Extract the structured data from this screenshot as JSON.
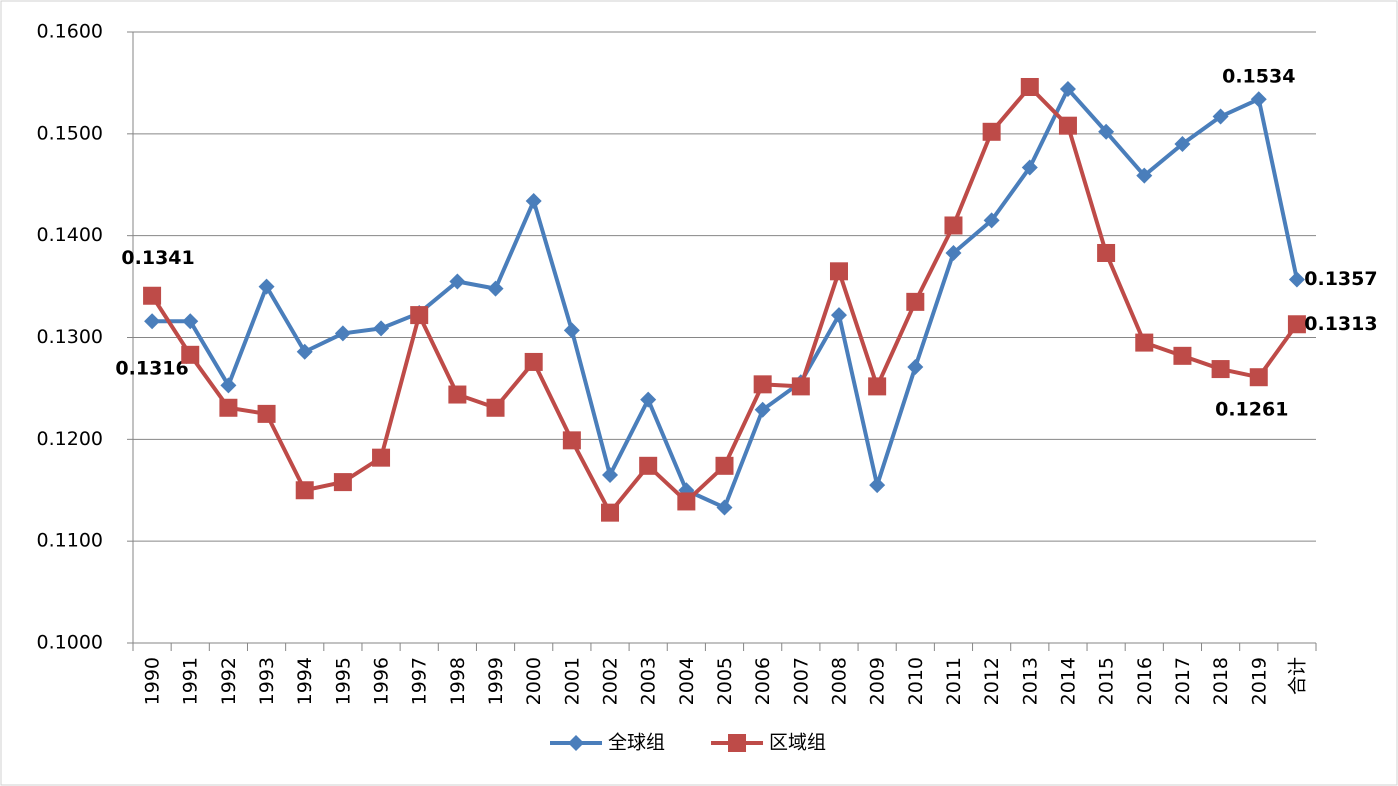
{
  "chart_data": {
    "type": "line",
    "categories": [
      "1990",
      "1991",
      "1992",
      "1993",
      "1994",
      "1995",
      "1996",
      "1997",
      "1998",
      "1999",
      "2000",
      "2001",
      "2002",
      "2003",
      "2004",
      "2005",
      "2006",
      "2007",
      "2008",
      "2009",
      "2010",
      "2011",
      "2012",
      "2013",
      "2014",
      "2015",
      "2016",
      "2017",
      "2018",
      "2019",
      "合计"
    ],
    "series": [
      {
        "name": "全球组",
        "color": "#4a7ebb",
        "marker": "diamond",
        "values": [
          0.1316,
          0.1316,
          0.1253,
          0.135,
          0.1286,
          0.1304,
          0.1309,
          0.1324,
          0.1355,
          0.1348,
          0.1434,
          0.1307,
          0.1165,
          0.1239,
          0.115,
          0.1133,
          0.1229,
          0.1256,
          0.1322,
          0.1155,
          0.1271,
          0.1383,
          0.1415,
          0.1467,
          0.1544,
          0.1502,
          0.1459,
          0.149,
          0.1517,
          0.1534,
          0.1357
        ],
        "value_labels": [
          "0.1316",
          null,
          null,
          null,
          null,
          null,
          null,
          null,
          null,
          null,
          null,
          null,
          null,
          null,
          null,
          null,
          null,
          null,
          null,
          null,
          null,
          null,
          null,
          null,
          null,
          null,
          null,
          null,
          null,
          "0.1534",
          "0.1357"
        ]
      },
      {
        "name": "区域组",
        "color": "#be4b48",
        "marker": "square",
        "values": [
          0.1341,
          0.1283,
          0.1231,
          0.1225,
          0.115,
          0.1158,
          0.1182,
          0.1322,
          0.1244,
          0.1231,
          0.1276,
          0.1199,
          0.1128,
          0.1174,
          0.1139,
          0.1174,
          0.1254,
          0.1252,
          0.1365,
          0.1252,
          0.1335,
          0.141,
          0.1502,
          0.1546,
          0.1508,
          0.1383,
          0.1295,
          0.1282,
          0.1269,
          0.1261,
          0.1313
        ],
        "value_labels": [
          "0.1341",
          null,
          null,
          null,
          null,
          null,
          null,
          null,
          null,
          null,
          null,
          null,
          null,
          null,
          null,
          null,
          null,
          null,
          null,
          null,
          null,
          null,
          null,
          null,
          null,
          null,
          null,
          null,
          null,
          "0.1261",
          "0.1313"
        ]
      }
    ],
    "ylim": [
      0.1,
      0.16
    ],
    "yticks": [
      {
        "value": 0.1,
        "label": "0.1000"
      },
      {
        "value": 0.11,
        "label": "0.1100"
      },
      {
        "value": 0.12,
        "label": "0.1200"
      },
      {
        "value": 0.13,
        "label": "0.1300"
      },
      {
        "value": 0.14,
        "label": "0.1400"
      },
      {
        "value": 0.15,
        "label": "0.1500"
      },
      {
        "value": 0.16,
        "label": "0.1600"
      }
    ],
    "grid": true,
    "legend": "bottom"
  }
}
